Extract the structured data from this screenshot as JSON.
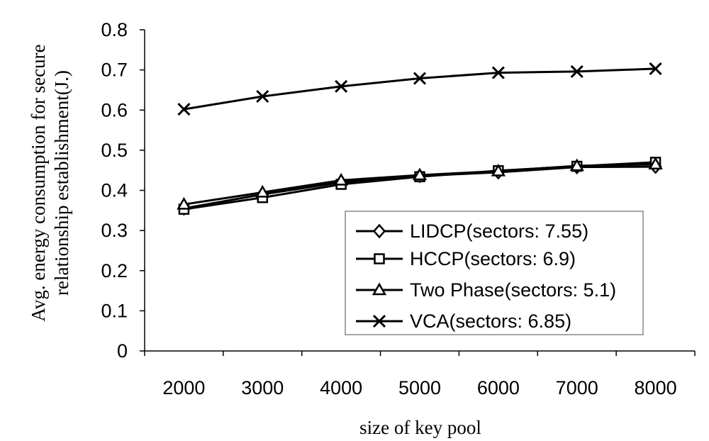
{
  "chart_data": {
    "type": "line",
    "title": "",
    "xlabel": "size of key pool",
    "ylabel_lines": [
      "Avg. energy consumption for secure",
      "relationship establishment(J.)"
    ],
    "categories": [
      "2000",
      "3000",
      "4000",
      "5000",
      "6000",
      "7000",
      "8000"
    ],
    "ylim": [
      0,
      0.8
    ],
    "yticks": [
      "0",
      "0.1",
      "0.2",
      "0.3",
      "0.4",
      "0.5",
      "0.6",
      "0.7",
      "0.8"
    ],
    "grid": false,
    "legend_position": "bottom-right",
    "series": [
      {
        "name": "LIDCP(sectors: 7.55)",
        "marker": "diamond",
        "values": [
          0.355,
          0.39,
          0.42,
          0.436,
          0.445,
          0.458,
          0.459
        ]
      },
      {
        "name": "HCCP(sectors: 6.9)",
        "marker": "square",
        "values": [
          0.353,
          0.382,
          0.415,
          0.434,
          0.449,
          0.46,
          0.47
        ]
      },
      {
        "name": "Two Phase(sectors: 5.1)",
        "marker": "triangle",
        "values": [
          0.365,
          0.395,
          0.425,
          0.438,
          0.448,
          0.461,
          0.465
        ]
      },
      {
        "name": "VCA(sectors: 6.85)",
        "marker": "x",
        "values": [
          0.602,
          0.634,
          0.659,
          0.679,
          0.693,
          0.696,
          0.703
        ]
      }
    ]
  }
}
